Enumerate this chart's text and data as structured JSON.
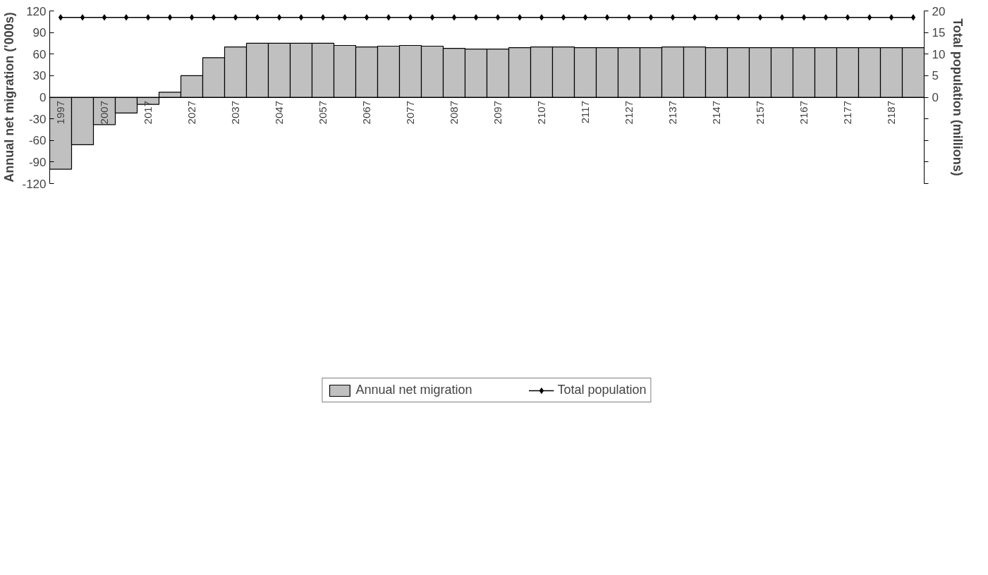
{
  "chart_data": {
    "type": "bar",
    "ylabel": "Annual net migration ('000s)",
    "y2label": "Total population (millions)",
    "categories": [
      "1997",
      null,
      "2007",
      null,
      "2017",
      null,
      "2027",
      null,
      "2037",
      null,
      "2047",
      null,
      "2057",
      null,
      "2067",
      null,
      "2077",
      null,
      "2087",
      null,
      "2097",
      null,
      "2107",
      null,
      "2117",
      null,
      "2127",
      null,
      "2137",
      null,
      "2147",
      null,
      "2157",
      null,
      "2167",
      null,
      "2177",
      null,
      "2187",
      null
    ],
    "series": [
      {
        "name": "Annual net migration",
        "color": "#c0c0c0",
        "values": [
          -100,
          -66,
          -38,
          -22,
          -10,
          7,
          30,
          55,
          70,
          75,
          75,
          75,
          75,
          72,
          70,
          71,
          72,
          71,
          68,
          67,
          67,
          69,
          70,
          70,
          69,
          69,
          69,
          69,
          70,
          70,
          69,
          69,
          69,
          69,
          69,
          69,
          69,
          69,
          69,
          69
        ]
      },
      {
        "name": "Total population",
        "type": "line",
        "axis": "y2",
        "color": "#000000",
        "marker": "diamond",
        "values": [
          18.5,
          18.5,
          18.5,
          18.5,
          18.5,
          18.5,
          18.5,
          18.5,
          18.5,
          18.5,
          18.5,
          18.5,
          18.5,
          18.5,
          18.5,
          18.5,
          18.5,
          18.5,
          18.5,
          18.5,
          18.5,
          18.5,
          18.5,
          18.5,
          18.5,
          18.5,
          18.5,
          18.5,
          18.5,
          18.5,
          18.5,
          18.5,
          18.5,
          18.5,
          18.5,
          18.5,
          18.5,
          18.5,
          18.5,
          18.5
        ]
      }
    ],
    "ylim": [
      -120,
      120
    ],
    "yticks": [
      -120,
      -90,
      -60,
      -30,
      0,
      30,
      60,
      90,
      120
    ],
    "y2lim": [
      -20,
      20
    ],
    "y2ticks": [
      {
        "value": -20,
        "label": null
      },
      {
        "value": -15,
        "label": null
      },
      {
        "value": -10,
        "label": null
      },
      {
        "value": -5,
        "label": null
      },
      0,
      5,
      10,
      15,
      20
    ],
    "grid": false,
    "legend": "bottom"
  }
}
